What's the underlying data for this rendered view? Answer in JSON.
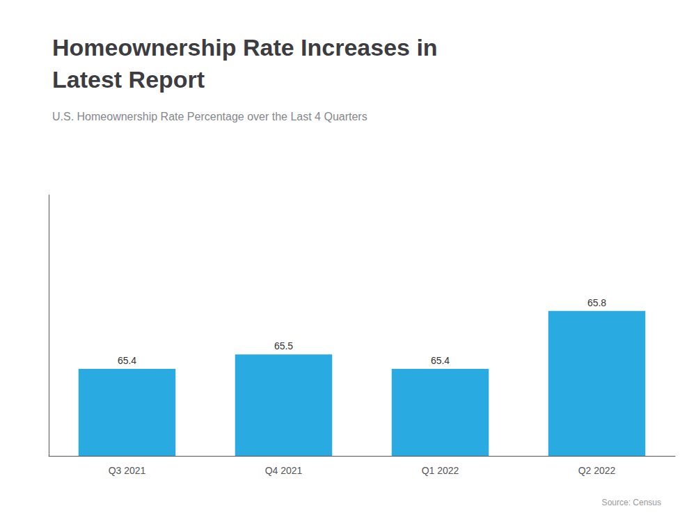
{
  "chart_data": {
    "type": "bar",
    "title": "Homeownership Rate Increases in\nLatest Report",
    "subtitle": "U.S. Homeownership Rate Percentage over the Last 4 Quarters",
    "annotations": [
      "Source: Census"
    ],
    "categories": [
      "Q3 2021",
      "Q4 2021",
      "Q1 2022",
      "Q2 2022"
    ],
    "values": [
      65.4,
      65.5,
      65.4,
      65.8
    ],
    "color": "#29ABE2",
    "ylim": [
      64.8,
      66.6
    ],
    "grid": false,
    "data_labels": true,
    "tick_labels": "x"
  }
}
